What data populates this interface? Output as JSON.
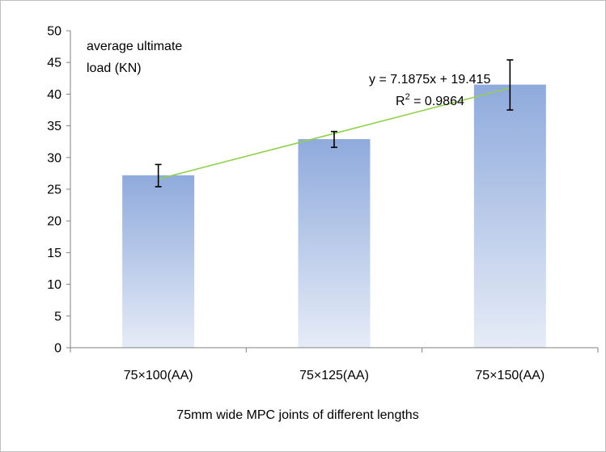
{
  "chart_data": {
    "type": "bar",
    "title": "",
    "ylabel": "average ultimate load (KN)",
    "ylabel_lines": [
      "average ultimate",
      "load (KN)"
    ],
    "xlabel": "75mm wide MPC joints of different lengths",
    "categories": [
      "75×100(AA)",
      "75×125(AA)",
      "75×150(AA)"
    ],
    "values": [
      27.2,
      32.9,
      41.5
    ],
    "error_low": [
      25.4,
      31.6,
      37.5
    ],
    "error_high": [
      28.9,
      34.1,
      45.4
    ],
    "ylim": [
      0,
      50
    ],
    "yticks": [
      "0",
      "5",
      "10",
      "15",
      "20",
      "25",
      "30",
      "35",
      "40",
      "45",
      "50"
    ],
    "grid": false,
    "legend": "none",
    "trendline": {
      "type": "linear",
      "slope": 7.1875,
      "intercept": 19.415,
      "equation": "y = 7.1875x + 19.415",
      "r_squared_prefix": "R",
      "r_squared_sup": "2",
      "r_squared_value": " = 0.9864"
    },
    "colors": {
      "bar_top": "#8faadc",
      "bar_bottom": "#e6ecf7",
      "trendline": "#92d050",
      "axis": "#808080",
      "error_bar": "#000000"
    }
  }
}
